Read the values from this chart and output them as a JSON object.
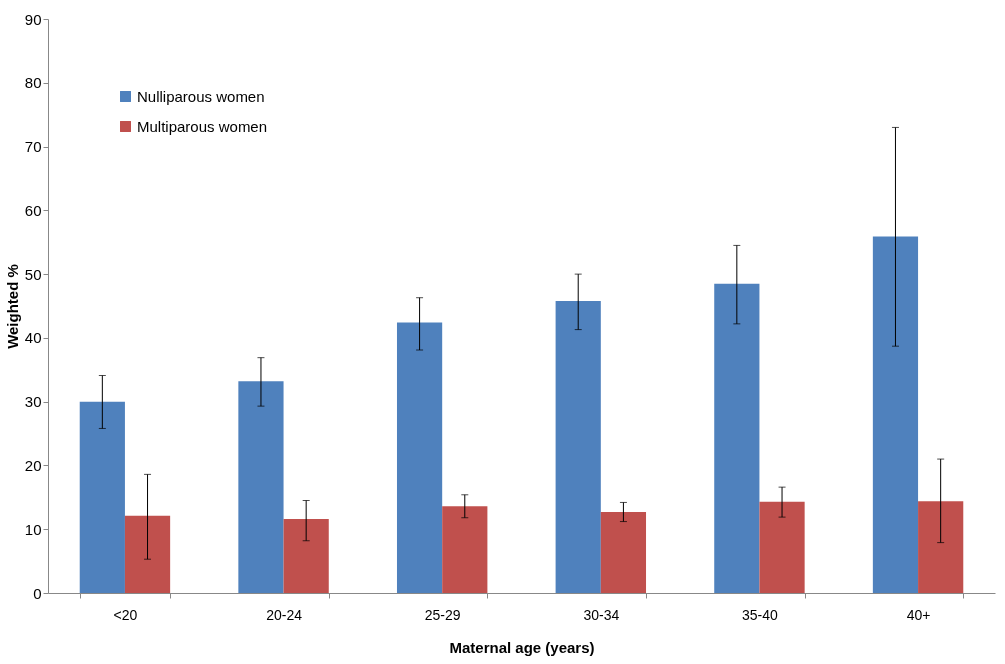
{
  "chart_data": {
    "type": "bar",
    "xlabel": "Maternal age (years)",
    "ylabel": "Weighted %",
    "categories": [
      "<20",
      "20-24",
      "25-29",
      "30-34",
      "35-40",
      "40+"
    ],
    "series": [
      {
        "name": "Nulliparous women",
        "color": "#4f81bd",
        "values": [
          30.0,
          33.2,
          42.4,
          45.8,
          48.5,
          55.9
        ],
        "errors": [
          [
            25.8,
            34.1
          ],
          [
            29.3,
            36.9
          ],
          [
            38.1,
            46.3
          ],
          [
            41.3,
            50.0
          ],
          [
            42.2,
            54.5
          ],
          [
            38.7,
            73.0
          ]
        ]
      },
      {
        "name": "Multiparous women",
        "color": "#c0504d",
        "values": [
          12.1,
          11.6,
          13.6,
          12.7,
          14.3,
          14.4
        ],
        "errors": [
          [
            5.3,
            18.6
          ],
          [
            8.2,
            14.5
          ],
          [
            11.8,
            15.4
          ],
          [
            11.2,
            14.2
          ],
          [
            11.9,
            16.6
          ],
          [
            7.9,
            21.0
          ]
        ]
      }
    ],
    "ylim": [
      0,
      90
    ],
    "yticks": [
      0,
      10,
      20,
      30,
      40,
      50,
      60,
      70,
      80,
      90
    ],
    "grid": false,
    "legend": "top left"
  }
}
